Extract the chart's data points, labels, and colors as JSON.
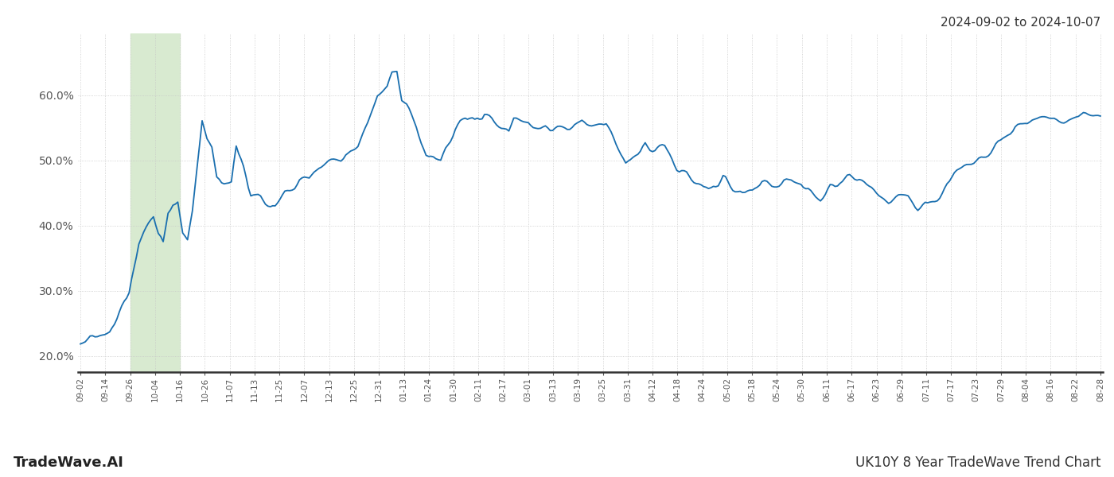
{
  "title_right": "2024-09-02 to 2024-10-07",
  "footer_left": "TradeWave.AI",
  "footer_right": "UK10Y 8 Year TradeWave Trend Chart",
  "line_color": "#1a6faf",
  "line_width": 1.3,
  "bg_color": "#ffffff",
  "grid_color": "#c8c8c8",
  "highlight_color": "#d8ead0",
  "ylim_low": 0.175,
  "ylim_high": 0.695,
  "yticks": [
    0.2,
    0.3,
    0.4,
    0.5,
    0.6
  ],
  "ytick_labels": [
    "20.0%",
    "30.0%",
    "40.0%",
    "50.0%",
    "60.0%"
  ],
  "x_labels": [
    "09-02",
    "09-14",
    "09-26",
    "10-04",
    "10-16",
    "10-26",
    "11-07",
    "11-13",
    "11-25",
    "12-07",
    "12-13",
    "12-25",
    "12-31",
    "01-13",
    "01-24",
    "01-30",
    "02-11",
    "02-17",
    "03-01",
    "03-13",
    "03-19",
    "03-25",
    "03-31",
    "04-12",
    "04-18",
    "04-24",
    "05-02",
    "05-18",
    "05-24",
    "05-30",
    "06-11",
    "06-17",
    "06-23",
    "06-29",
    "07-11",
    "07-17",
    "07-23",
    "07-29",
    "08-04",
    "08-16",
    "08-22",
    "08-28"
  ],
  "highlight_label_start": "09-26",
  "highlight_label_end": "10-16"
}
